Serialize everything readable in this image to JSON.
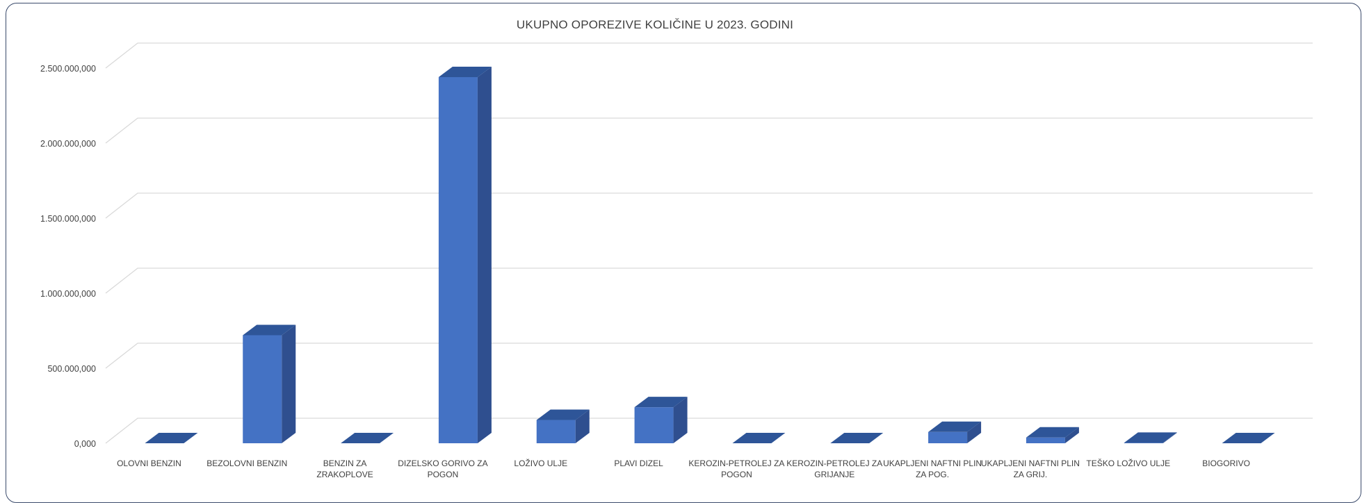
{
  "chart_data": {
    "type": "bar",
    "title": "UKUPNO OPOREZIVE KOLIČINE U 2023. GODINI",
    "xlabel": "",
    "ylabel": "",
    "ylim": [
      0,
      2500000000
    ],
    "yticks": [
      0,
      500000000,
      1000000000,
      1500000000,
      2000000000,
      2500000000
    ],
    "ytick_labels": [
      "0,000",
      "500.000,000",
      "1.000.000,000",
      "1.500.000,000",
      "2.000.000,000",
      "2.500.000,000"
    ],
    "grid": true,
    "legend": "none",
    "categories": [
      [
        "OLOVNI BENZIN"
      ],
      [
        "BEZOLOVNI BENZIN"
      ],
      [
        "BENZIN ZA",
        "ZRAKOPLOVE"
      ],
      [
        "DIZELSKO GORIVO ZA",
        "POGON"
      ],
      [
        "LOŽIVO ULJE"
      ],
      [
        "PLAVI DIZEL"
      ],
      [
        "KEROZIN-PETROLEJ ZA",
        "POGON"
      ],
      [
        "KEROZIN-PETROLEJ ZA",
        "GRIJANJE"
      ],
      [
        "UKAPLJENI NAFTNI PLIN",
        "ZA POG."
      ],
      [
        "UKAPLJENI NAFTNI PLIN",
        "ZA GRIJ."
      ],
      [
        "TEŠKO LOŽIVO ULJE"
      ],
      [
        "BIOGORIVO"
      ]
    ],
    "values": [
      0,
      720000000,
      0,
      2440000000,
      155000000,
      240000000,
      0,
      0,
      75000000,
      38000000,
      3000000,
      0
    ],
    "colors": {
      "front": "#4472C4",
      "side": "#2F4F8F",
      "top": "#2E5598",
      "grid": "#d9d9d9",
      "axis_text": "#404040"
    }
  }
}
